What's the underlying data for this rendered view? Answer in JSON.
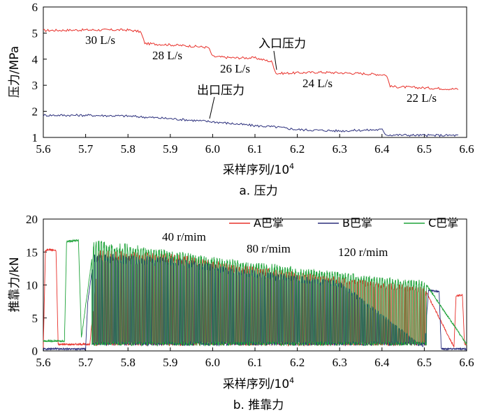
{
  "chart_data": [
    {
      "type": "line",
      "xlim": [
        5.6,
        6.6
      ],
      "ylim": [
        1,
        6
      ],
      "x_ticks": [
        "5.6",
        "5.7",
        "5.8",
        "5.9",
        "6.0",
        "6.1",
        "6.2",
        "6.3",
        "6.4",
        "6.5",
        "6.6"
      ],
      "y_ticks": [
        "1",
        "2",
        "3",
        "4",
        "5",
        "6"
      ],
      "xlabel": "采样序列/10",
      "xlabel_sup": "4",
      "ylabel": "压力/MPa",
      "caption": "a. 压力",
      "series": [
        {
          "name": "入口压力",
          "color": "#e8302a",
          "x": [
            5.6,
            5.7,
            5.8,
            5.83,
            5.84,
            5.9,
            5.95,
            5.99,
            6.0,
            6.05,
            6.1,
            6.14,
            6.15,
            6.25,
            6.35,
            6.41,
            6.42,
            6.5,
            6.58
          ],
          "y": [
            5.1,
            5.12,
            5.12,
            5.05,
            4.6,
            4.55,
            4.5,
            4.45,
            4.1,
            4.05,
            4.05,
            3.9,
            3.45,
            3.5,
            3.45,
            3.4,
            2.95,
            2.9,
            2.85
          ]
        },
        {
          "name": "出口压力",
          "color": "#2b2f7c",
          "x": [
            5.6,
            5.7,
            5.8,
            5.9,
            6.0,
            6.1,
            6.15,
            6.2,
            6.3,
            6.4,
            6.41,
            6.5,
            6.58
          ],
          "y": [
            1.85,
            1.85,
            1.82,
            1.72,
            1.6,
            1.45,
            1.4,
            1.3,
            1.25,
            1.3,
            1.1,
            1.08,
            1.08
          ]
        }
      ],
      "annotations": [
        "30 L/s",
        "28 L/s",
        "26 L/s",
        "24 L/s",
        "22 L/s",
        "入口压力",
        "出口压力"
      ]
    },
    {
      "type": "line",
      "xlim": [
        5.6,
        6.6
      ],
      "ylim": [
        0,
        20
      ],
      "x_ticks": [
        "5.6",
        "5.7",
        "5.8",
        "5.9",
        "6.0",
        "6.1",
        "6.2",
        "6.3",
        "6.4",
        "6.5",
        "6.6"
      ],
      "y_ticks": [
        "0",
        "5",
        "10",
        "15",
        "20"
      ],
      "xlabel": "采样序列/10",
      "xlabel_sup": "4",
      "ylabel": "推靠力/kN",
      "caption": "b. 推靠力",
      "series": [
        {
          "name": "A巴掌",
          "color": "#e8302a",
          "x": [
            5.6,
            5.605,
            5.613,
            5.63,
            5.635,
            5.71,
            5.73,
            5.9,
            6.1,
            6.3,
            6.5,
            6.57,
            6.575,
            6.59,
            6.595,
            6.6
          ],
          "y": [
            0.5,
            15.2,
            15.4,
            15.2,
            1.0,
            1.0,
            15.0,
            14.5,
            12.5,
            11.0,
            9.5,
            0.6,
            8.3,
            8.5,
            1.0,
            1.0
          ]
        },
        {
          "name": "B巴掌",
          "color": "#2b2f7c",
          "x": [
            5.6,
            5.7,
            5.705,
            5.72,
            5.9,
            6.1,
            6.3,
            6.5,
            6.51,
            6.535,
            6.54,
            6.6
          ],
          "y": [
            0.3,
            0.3,
            7.5,
            14.5,
            14.0,
            12.0,
            10.5,
            0.5,
            9.2,
            9.0,
            0.3,
            0.3
          ]
        },
        {
          "name": "C巴掌",
          "color": "#1fa33a",
          "x": [
            5.6,
            5.65,
            5.655,
            5.683,
            5.69,
            5.72,
            5.8,
            6.0,
            6.2,
            6.4,
            6.5,
            6.6
          ],
          "y": [
            1.5,
            1.5,
            16.6,
            16.8,
            2.0,
            16.5,
            16.0,
            14.0,
            12.5,
            11.0,
            10.5,
            1.0
          ]
        }
      ],
      "legend": [
        "A巴掌",
        "B巴掌",
        "C巴掌"
      ],
      "annotations": [
        "40 r/mim",
        "80 r/mim",
        "120 r/mim"
      ]
    }
  ]
}
